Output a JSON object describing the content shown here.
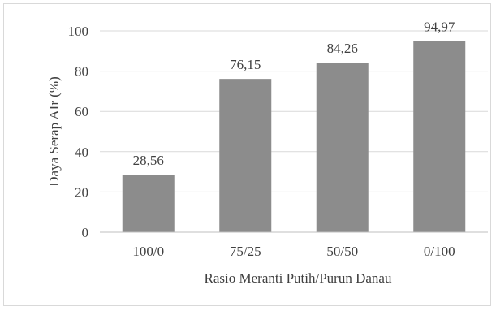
{
  "chart_data": {
    "type": "bar",
    "categories": [
      "100/0",
      "75/25",
      "50/50",
      "0/100"
    ],
    "values": [
      28.56,
      76.15,
      84.26,
      94.97
    ],
    "value_labels": [
      "28,56",
      "76,15",
      "84,26",
      "94,97"
    ],
    "xlabel": "Rasio Meranti Putih/Purun Danau",
    "ylabel": "Daya Serap AIr (%)",
    "ylim": [
      0,
      100
    ],
    "yticks": [
      0,
      20,
      40,
      60,
      80,
      100
    ],
    "grid": true,
    "legend": "none",
    "bar_color": "#8c8c8c",
    "grid_color": "#d9d9d9",
    "text_color": "#404040"
  }
}
